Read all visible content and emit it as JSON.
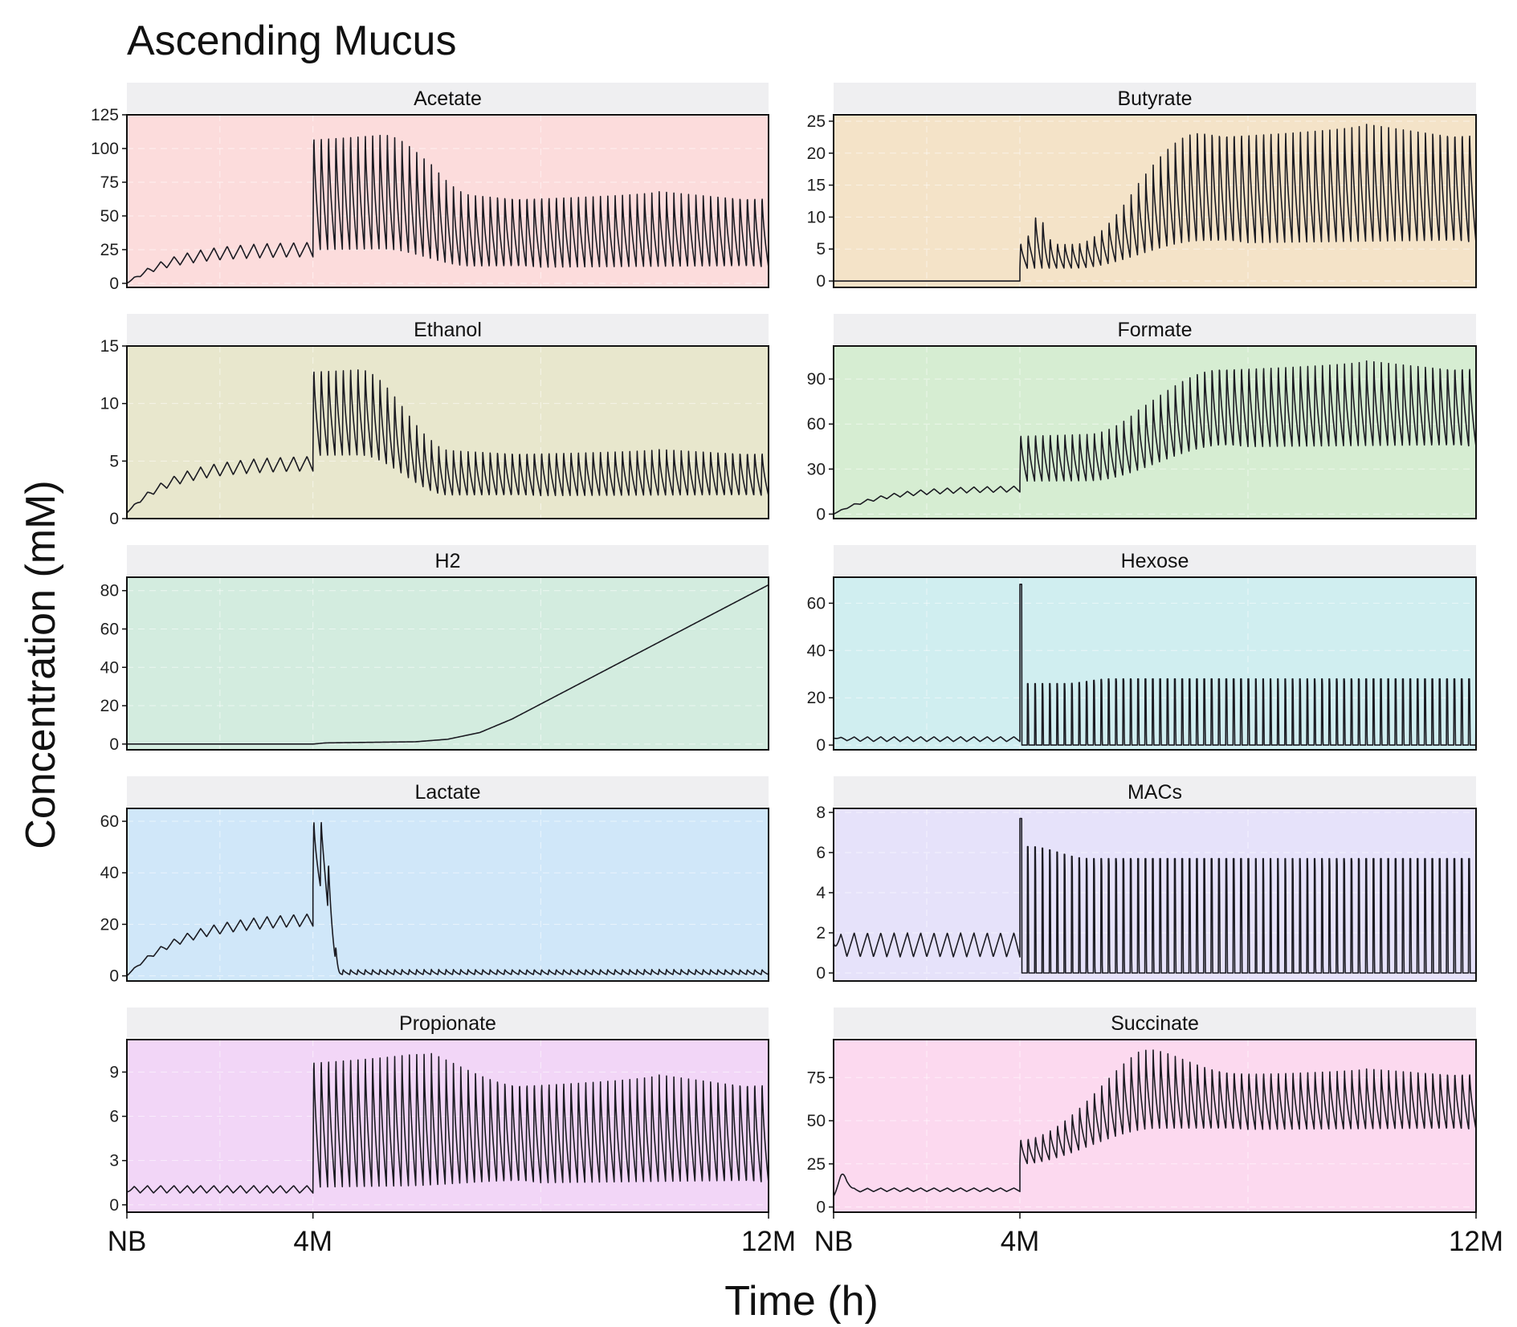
{
  "chart_data": {
    "type": "line",
    "title": "Ascending Mucus",
    "xlabel": "Time (h)",
    "ylabel": "Concentration (mM)",
    "x_ticks": [
      "NB",
      "4M",
      "12M"
    ],
    "grid": true,
    "layout": "facet grid, 2 columns x 5 rows",
    "panels": [
      {
        "name": "Acetate",
        "color": "#fcdcdc",
        "ylim": [
          -3,
          125
        ],
        "yticks": [
          0,
          25,
          50,
          75,
          100,
          125
        ],
        "pre": {
          "start": 0,
          "plateau_lo": 20,
          "plateau_hi": 31,
          "tau": 0.25
        },
        "post": {
          "early_lo": 25,
          "early_hi": 115,
          "late_lo": 12,
          "late_hi": 68,
          "transition": [
            0.15,
            0.35
          ]
        }
      },
      {
        "name": "Butyrate",
        "color": "#f4e3c8",
        "ylim": [
          -1,
          26
        ],
        "yticks": [
          0,
          5,
          10,
          15,
          20,
          25
        ],
        "pre": {
          "start": 0,
          "plateau_lo": 0,
          "plateau_hi": 0,
          "tau": 0.25
        },
        "post": {
          "early_lo": 2,
          "early_hi": 6,
          "late_lo": 6,
          "late_hi": 24.5,
          "transition": [
            0.12,
            0.4
          ],
          "bump": 11
        }
      },
      {
        "name": "Ethanol",
        "color": "#e8e7cd",
        "ylim": [
          0,
          15
        ],
        "yticks": [
          0,
          5,
          10,
          15
        ],
        "pre": {
          "start": 0.5,
          "plateau_lo": 4.2,
          "plateau_hi": 5.5,
          "tau": 0.25
        },
        "post": {
          "early_lo": 5.5,
          "early_hi": 13.5,
          "late_lo": 2,
          "late_hi": 6,
          "transition": [
            0.1,
            0.3
          ]
        }
      },
      {
        "name": "Formate",
        "color": "#d6edd2",
        "ylim": [
          -3,
          112
        ],
        "yticks": [
          0,
          30,
          60,
          90
        ],
        "pre": {
          "start": 0,
          "plateau_lo": 15,
          "plateau_hi": 19,
          "tau": 0.25
        },
        "post": {
          "early_lo": 22,
          "early_hi": 55,
          "late_lo": 45,
          "late_hi": 102,
          "transition": [
            0.15,
            0.45
          ]
        }
      },
      {
        "name": "H2",
        "color": "#d3ecdf",
        "ylim": [
          -3,
          87
        ],
        "yticks": [
          0,
          20,
          40,
          60,
          80
        ],
        "smooth": [
          [
            0,
            0
          ],
          [
            0.29,
            0
          ],
          [
            0.31,
            0.6
          ],
          [
            0.45,
            1.2
          ],
          [
            0.5,
            2.5
          ],
          [
            0.55,
            6
          ],
          [
            0.6,
            13
          ],
          [
            1,
            83
          ]
        ]
      },
      {
        "name": "Hexose",
        "color": "#d0eef0",
        "ylim": [
          -2,
          71
        ],
        "yticks": [
          0,
          20,
          40,
          60
        ],
        "pre": {
          "start": 3,
          "plateau_lo": 1.5,
          "plateau_hi": 3.5,
          "tau": 0.05
        },
        "post": {
          "early_lo": 0,
          "early_hi": 26,
          "late_lo": 0,
          "late_hi": 28,
          "transition": [
            0.1,
            0.2
          ],
          "spike": 68,
          "kind": "spike"
        }
      },
      {
        "name": "Lactate",
        "color": "#d0e7f9",
        "ylim": [
          -2,
          65
        ],
        "yticks": [
          0,
          20,
          40,
          60
        ],
        "pre": {
          "start": 0,
          "plateau_lo": 20,
          "plateau_hi": 25,
          "tau": 0.3
        },
        "post": {
          "early_lo": 35,
          "early_hi": 62,
          "late_lo": 0.5,
          "late_hi": 2.5,
          "transition": [
            0.02,
            0.06
          ]
        }
      },
      {
        "name": "MACs",
        "color": "#e6e2fa",
        "ylim": [
          -0.4,
          8.2
        ],
        "yticks": [
          0,
          2,
          4,
          6,
          8
        ],
        "pre": {
          "start": 1.5,
          "plateau_lo": 0.8,
          "plateau_hi": 2.0,
          "tau": 0.02
        },
        "post": {
          "early_lo": 0,
          "early_hi": 6.3,
          "late_lo": 0,
          "late_hi": 5.7,
          "transition": [
            0.02,
            0.15
          ],
          "spike": 7.7,
          "kind": "spike"
        }
      },
      {
        "name": "Propionate",
        "color": "#f2d6f7",
        "ylim": [
          -0.5,
          11.2
        ],
        "yticks": [
          0,
          3,
          6,
          9
        ],
        "pre": {
          "start": 0.9,
          "plateau_lo": 0.8,
          "plateau_hi": 1.3,
          "tau": 0.02
        },
        "post": {
          "early_lo": 1.2,
          "early_hi": 10.5,
          "late_lo": 1.5,
          "late_hi": 8.8,
          "transition": [
            0.2,
            0.45
          ]
        }
      },
      {
        "name": "Succinate",
        "color": "#fcd9ef",
        "ylim": [
          -3,
          97
        ],
        "yticks": [
          0,
          25,
          50,
          75
        ],
        "pre": {
          "start": 5,
          "plateau_lo": 9,
          "plateau_hi": 11,
          "tau": 0.05,
          "hump": 22
        },
        "post": {
          "early_lo": 25,
          "early_hi": 40,
          "late_lo": 45,
          "late_hi": 80,
          "transition": [
            0.0,
            0.3
          ],
          "overshoot": 92
        }
      }
    ]
  }
}
